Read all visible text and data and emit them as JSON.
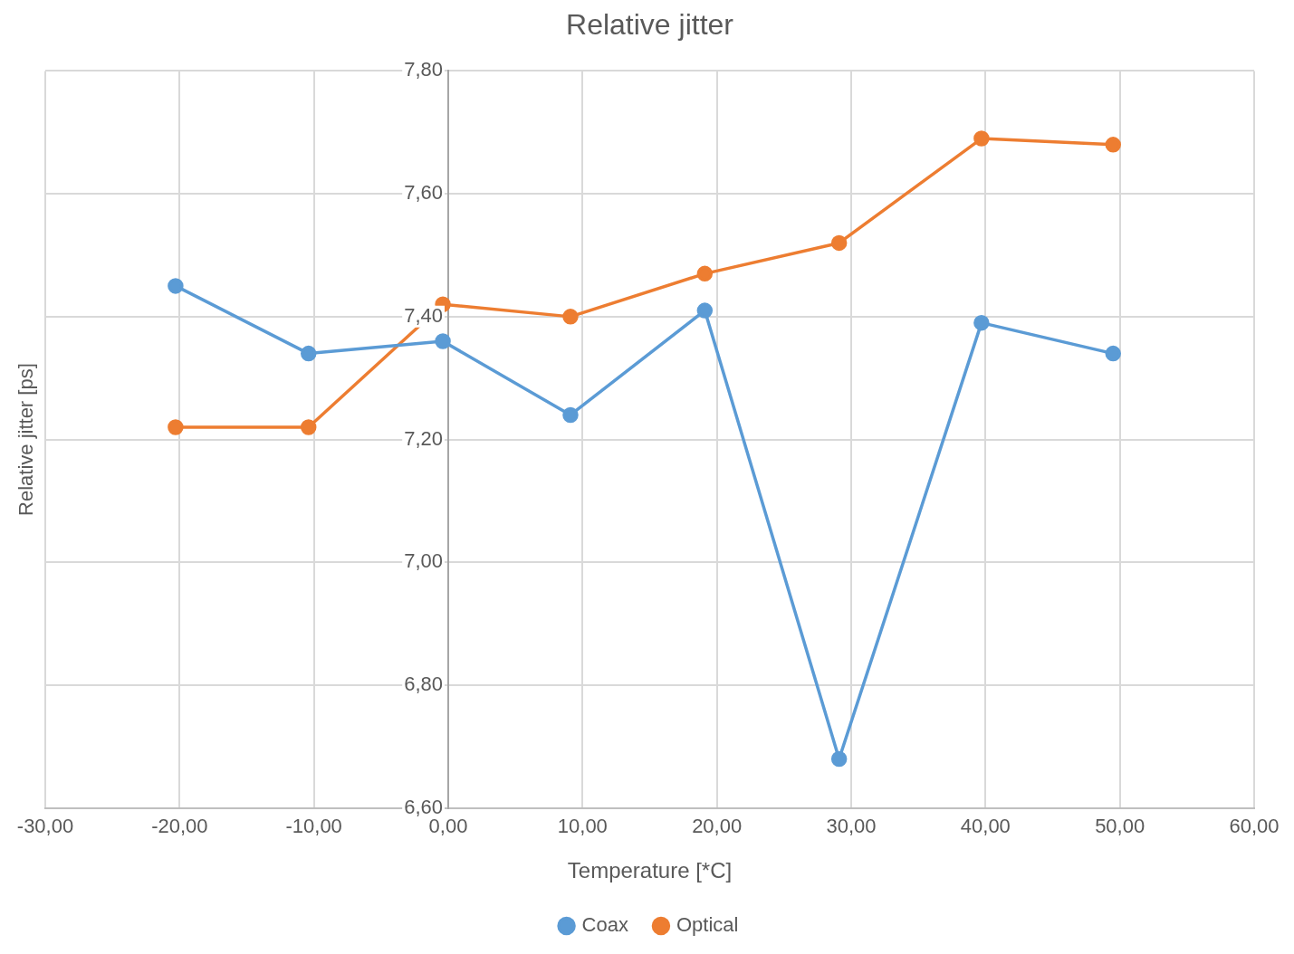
{
  "chart_data": {
    "type": "line",
    "title": "Relative jitter",
    "xlabel": "Temperature [*C]",
    "ylabel": "Relative jitter [ps]",
    "xlim": [
      -30,
      60
    ],
    "ylim": [
      6.6,
      7.8
    ],
    "xticks": [
      {
        "value": -30,
        "label": "-30,00"
      },
      {
        "value": -20,
        "label": "-20,00"
      },
      {
        "value": -10,
        "label": "-10,00"
      },
      {
        "value": 0,
        "label": "0,00"
      },
      {
        "value": 10,
        "label": "10,00"
      },
      {
        "value": 20,
        "label": "20,00"
      },
      {
        "value": 30,
        "label": "30,00"
      },
      {
        "value": 40,
        "label": "40,00"
      },
      {
        "value": 50,
        "label": "50,00"
      },
      {
        "value": 60,
        "label": "60,00"
      }
    ],
    "yticks": [
      {
        "value": 6.6,
        "label": "6,60"
      },
      {
        "value": 6.8,
        "label": "6,80"
      },
      {
        "value": 7.0,
        "label": "7,00"
      },
      {
        "value": 7.2,
        "label": "7,20"
      },
      {
        "value": 7.4,
        "label": "7,40"
      },
      {
        "value": 7.6,
        "label": "7,60"
      },
      {
        "value": 7.8,
        "label": "7,80"
      }
    ],
    "x": [
      -20.3,
      -10.4,
      -0.4,
      9.1,
      19.1,
      29.1,
      39.7,
      49.5
    ],
    "series": [
      {
        "name": "Coax",
        "color": "#5b9bd5",
        "values": [
          7.45,
          7.34,
          7.36,
          7.24,
          7.41,
          6.68,
          7.39,
          7.34
        ]
      },
      {
        "name": "Optical",
        "color": "#ed7d31",
        "values": [
          7.22,
          7.22,
          7.42,
          7.4,
          7.47,
          7.52,
          7.69,
          7.68
        ]
      }
    ],
    "grid": true,
    "legend": "bottom",
    "marker": "circle",
    "line_style": "solid"
  }
}
